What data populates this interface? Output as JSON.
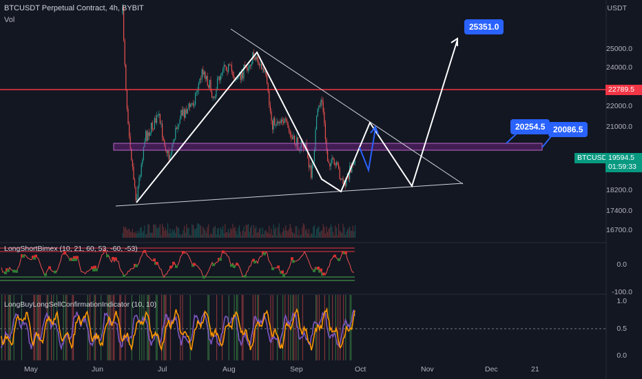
{
  "header": {
    "title": "BTCUSDT Perpetual Contract, 4h, BYBIT",
    "vol_label": "Vol"
  },
  "axis": {
    "unit": "USDT",
    "price_ticks": [
      "25000.0",
      "24000.0",
      "22000.0",
      "21000.0",
      "18200.0",
      "17400.0",
      "16700.0"
    ],
    "ind1_ticks": [
      "0.0"
    ],
    "ind1_bottom": "-100.0",
    "ind2_ticks": [
      "1.0",
      "0.5",
      "0.0"
    ],
    "months": [
      "May",
      "Jun",
      "Jul",
      "Aug",
      "Sep",
      "Oct",
      "Nov",
      "Dec",
      "21"
    ]
  },
  "price_tags": {
    "resistance": "22789.5",
    "symbol": "BTCUSDT",
    "last_price": "19594.5",
    "countdown": "01:59:33"
  },
  "callouts": {
    "target_top": "25351.0",
    "zone_left": "20254.5",
    "zone_right": "20086.5"
  },
  "indicators": {
    "ind1_name": "LongShortBimex (10, 21, 60, 53, -60, -53)",
    "ind2_name": "LongBuyLongSellConfirmationIndicator (10, 10)"
  },
  "colors": {
    "background": "#131722",
    "up": "#26a69a",
    "down": "#ef5350",
    "resistance": "#f23645",
    "zone": "#9c27b0",
    "callout": "#2962ff",
    "orange": "#ff9800",
    "purple": "#7e57c2"
  }
}
